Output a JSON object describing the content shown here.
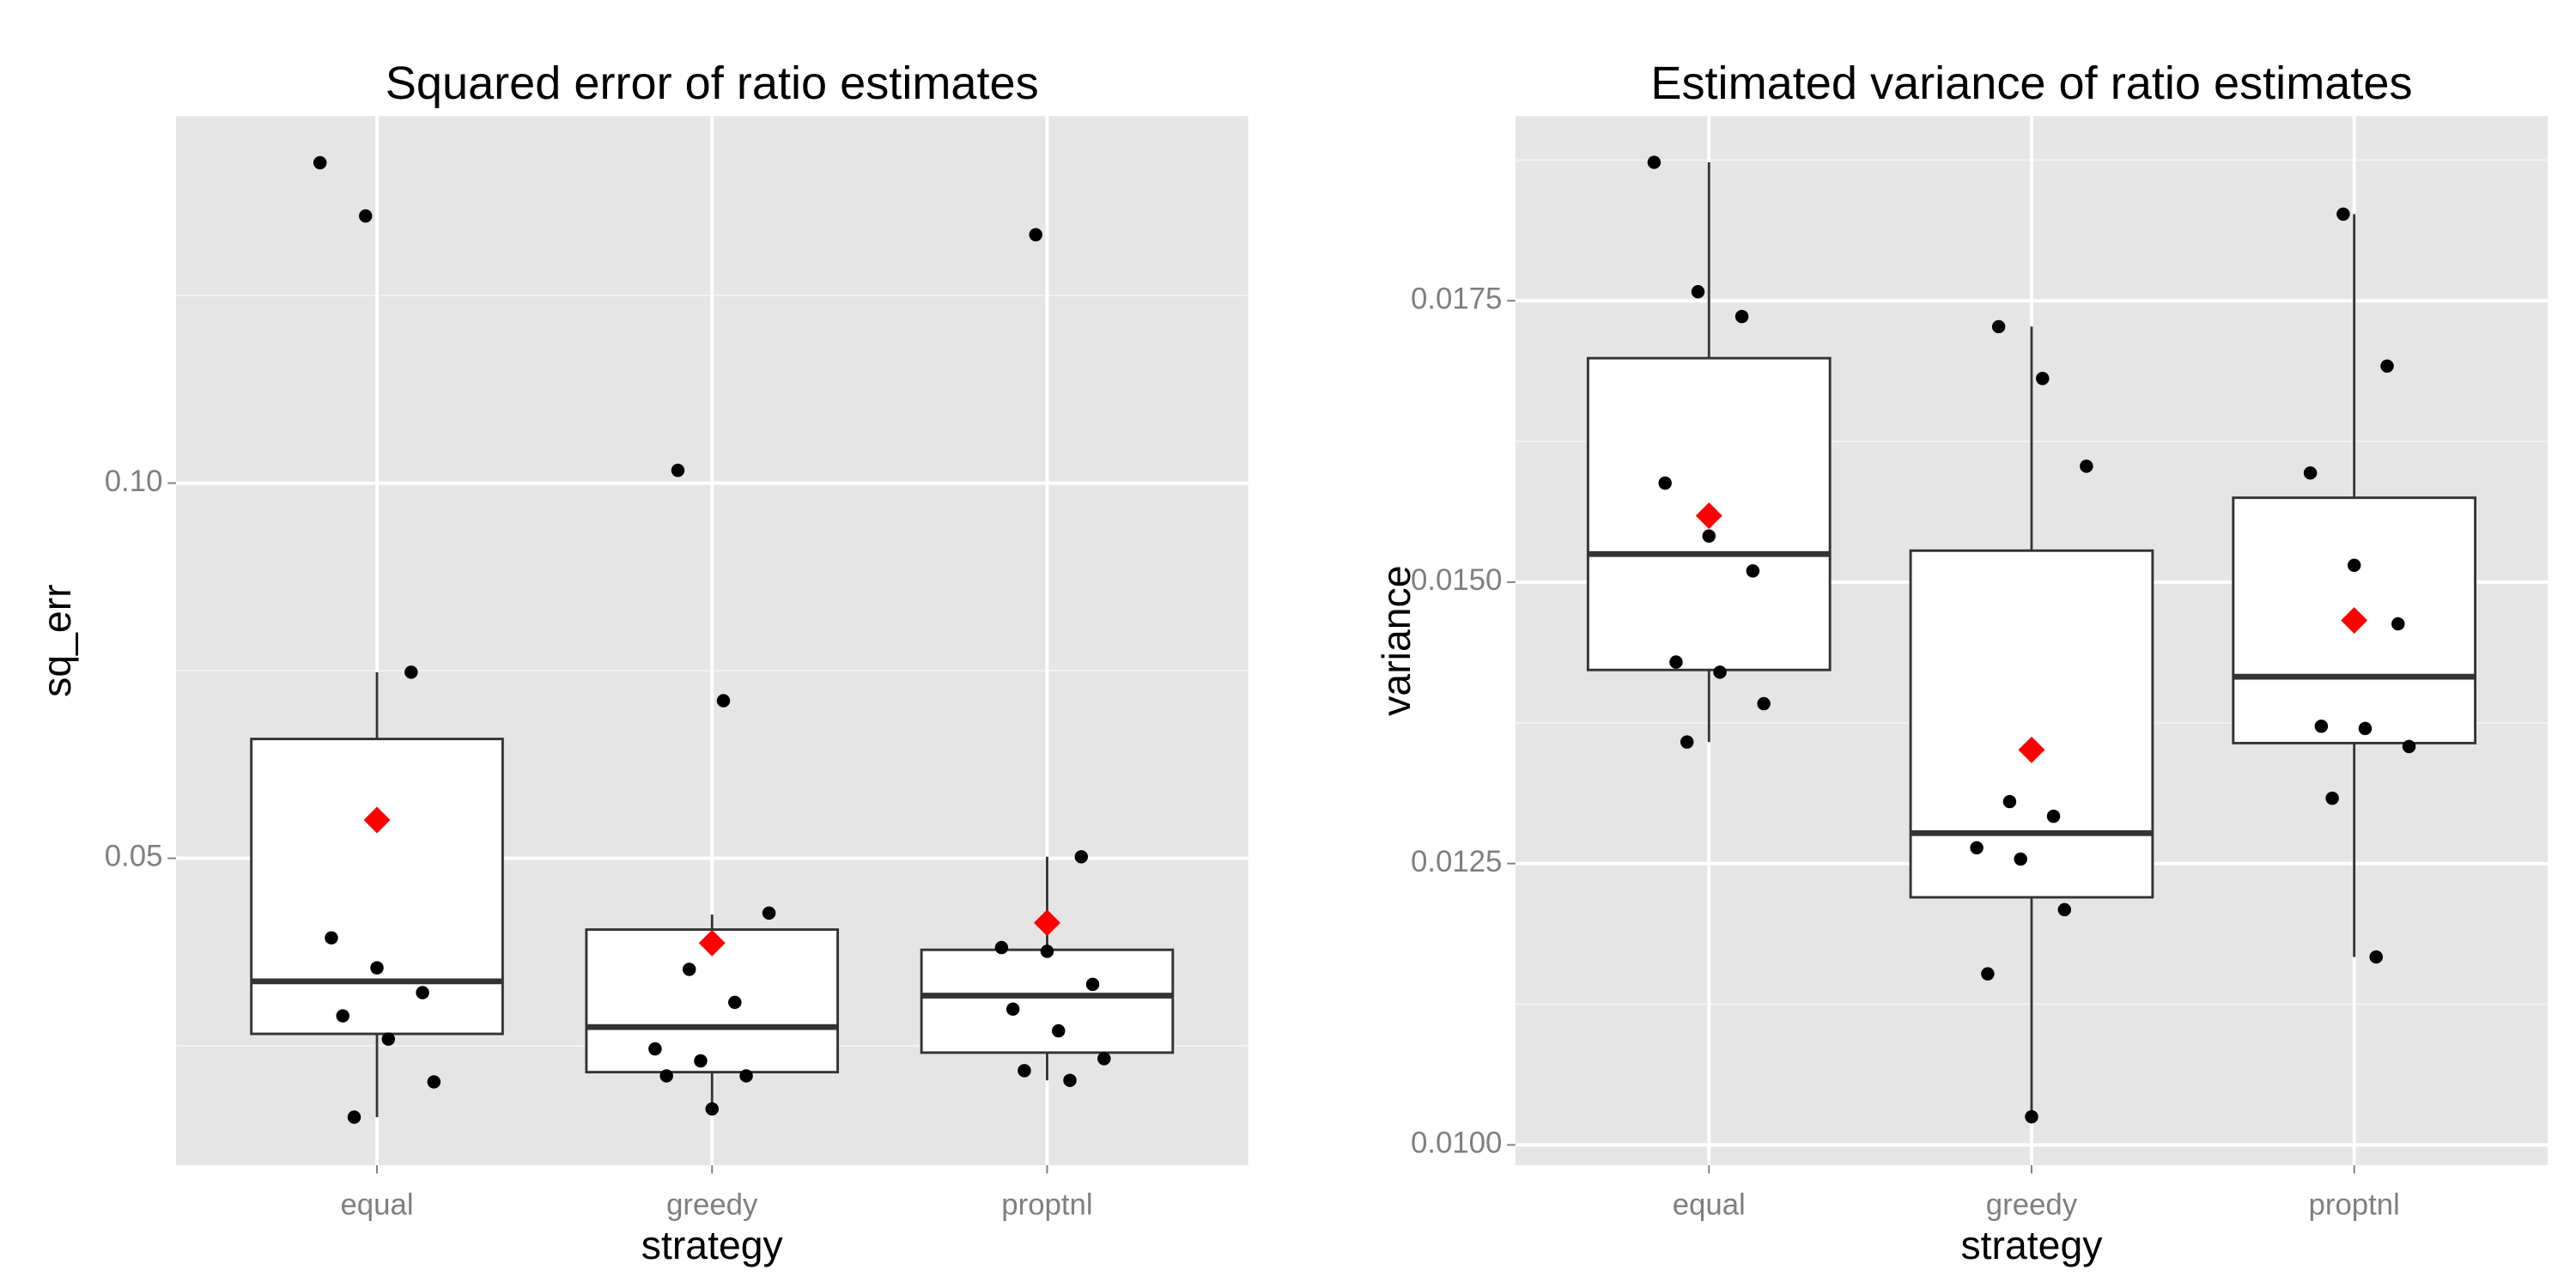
{
  "chart_data": [
    {
      "type": "box",
      "title": "Squared error of ratio estimates",
      "x_label": "strategy",
      "y_label": "sq_err",
      "categories": [
        "equal",
        "greedy",
        "proptnl"
      ],
      "ylim": [
        0.0091,
        0.1489
      ],
      "yticks": [
        0.05,
        {
          "value": 0.1,
          "label": "0.10"
        }
      ],
      "minor_yticks": [
        0.025,
        0.075,
        0.125
      ],
      "grid": true,
      "box_color": "#ffffff",
      "point_color": "#000000",
      "mean_color": "#ff0000",
      "boxes": [
        {
          "q1": 0.0266,
          "median": 0.0336,
          "q3": 0.0659,
          "whisker_low": 0.0155,
          "whisker_high": 0.0748,
          "mean": 0.0551
        },
        {
          "q1": 0.0215,
          "median": 0.0275,
          "q3": 0.0405,
          "whisker_low": 0.0166,
          "whisker_high": 0.0425,
          "mean": 0.0387
        },
        {
          "q1": 0.0241,
          "median": 0.0317,
          "q3": 0.0378,
          "whisker_low": 0.0204,
          "whisker_high": 0.0502,
          "mean": 0.0414
        }
      ],
      "points": [
        [
          0.1427,
          0.1356,
          0.0748,
          0.0394,
          0.0354,
          0.0321,
          0.029,
          0.0259,
          0.0202,
          0.0155
        ],
        [
          0.1017,
          0.071,
          0.0427,
          0.0352,
          0.0308,
          0.0246,
          0.023,
          0.021,
          0.021,
          0.0166
        ],
        [
          0.1331,
          0.0502,
          0.0381,
          0.0376,
          0.0332,
          0.0299,
          0.027,
          0.0233,
          0.0217,
          0.0204
        ]
      ]
    },
    {
      "type": "box",
      "title": "Estimated variance of ratio estimates",
      "x_label": "strategy",
      "y_label": "variance",
      "categories": [
        "equal",
        "greedy",
        "proptnl"
      ],
      "ylim": [
        0.00982,
        0.01914
      ],
      "yticks": [
        {
          "value": 0.01,
          "label": "0.0100"
        },
        {
          "value": 0.0125,
          "label": "0.0125"
        },
        {
          "value": 0.015,
          "label": "0.0150"
        },
        {
          "value": 0.0175,
          "label": "0.0175"
        }
      ],
      "minor_yticks": [
        0.01125,
        0.01375,
        0.01625,
        0.01875
      ],
      "grid": true,
      "box_color": "#ffffff",
      "point_color": "#000000",
      "mean_color": "#ff0000",
      "boxes": [
        {
          "q1": 0.01422,
          "median": 0.01525,
          "q3": 0.01699,
          "whisker_low": 0.01358,
          "whisker_high": 0.01873,
          "mean": 0.01559
        },
        {
          "q1": 0.0122,
          "median": 0.01277,
          "q3": 0.01528,
          "whisker_low": 0.01025,
          "whisker_high": 0.01727,
          "mean": 0.01351
        },
        {
          "q1": 0.01357,
          "median": 0.01416,
          "q3": 0.01575,
          "whisker_low": 0.01167,
          "whisker_high": 0.01827,
          "mean": 0.01466
        }
      ],
      "points": [
        [
          0.01873,
          0.01758,
          0.01736,
          0.01588,
          0.01541,
          0.0151,
          0.01429,
          0.0142,
          0.01392,
          0.01358
        ],
        [
          0.01727,
          0.01681,
          0.01603,
          0.01305,
          0.01292,
          0.01264,
          0.01254,
          0.01209,
          0.01152,
          0.01025
        ],
        [
          0.01827,
          0.01692,
          0.01597,
          0.01515,
          0.01463,
          0.01372,
          0.0137,
          0.01354,
          0.01308,
          0.01167
        ]
      ]
    }
  ]
}
